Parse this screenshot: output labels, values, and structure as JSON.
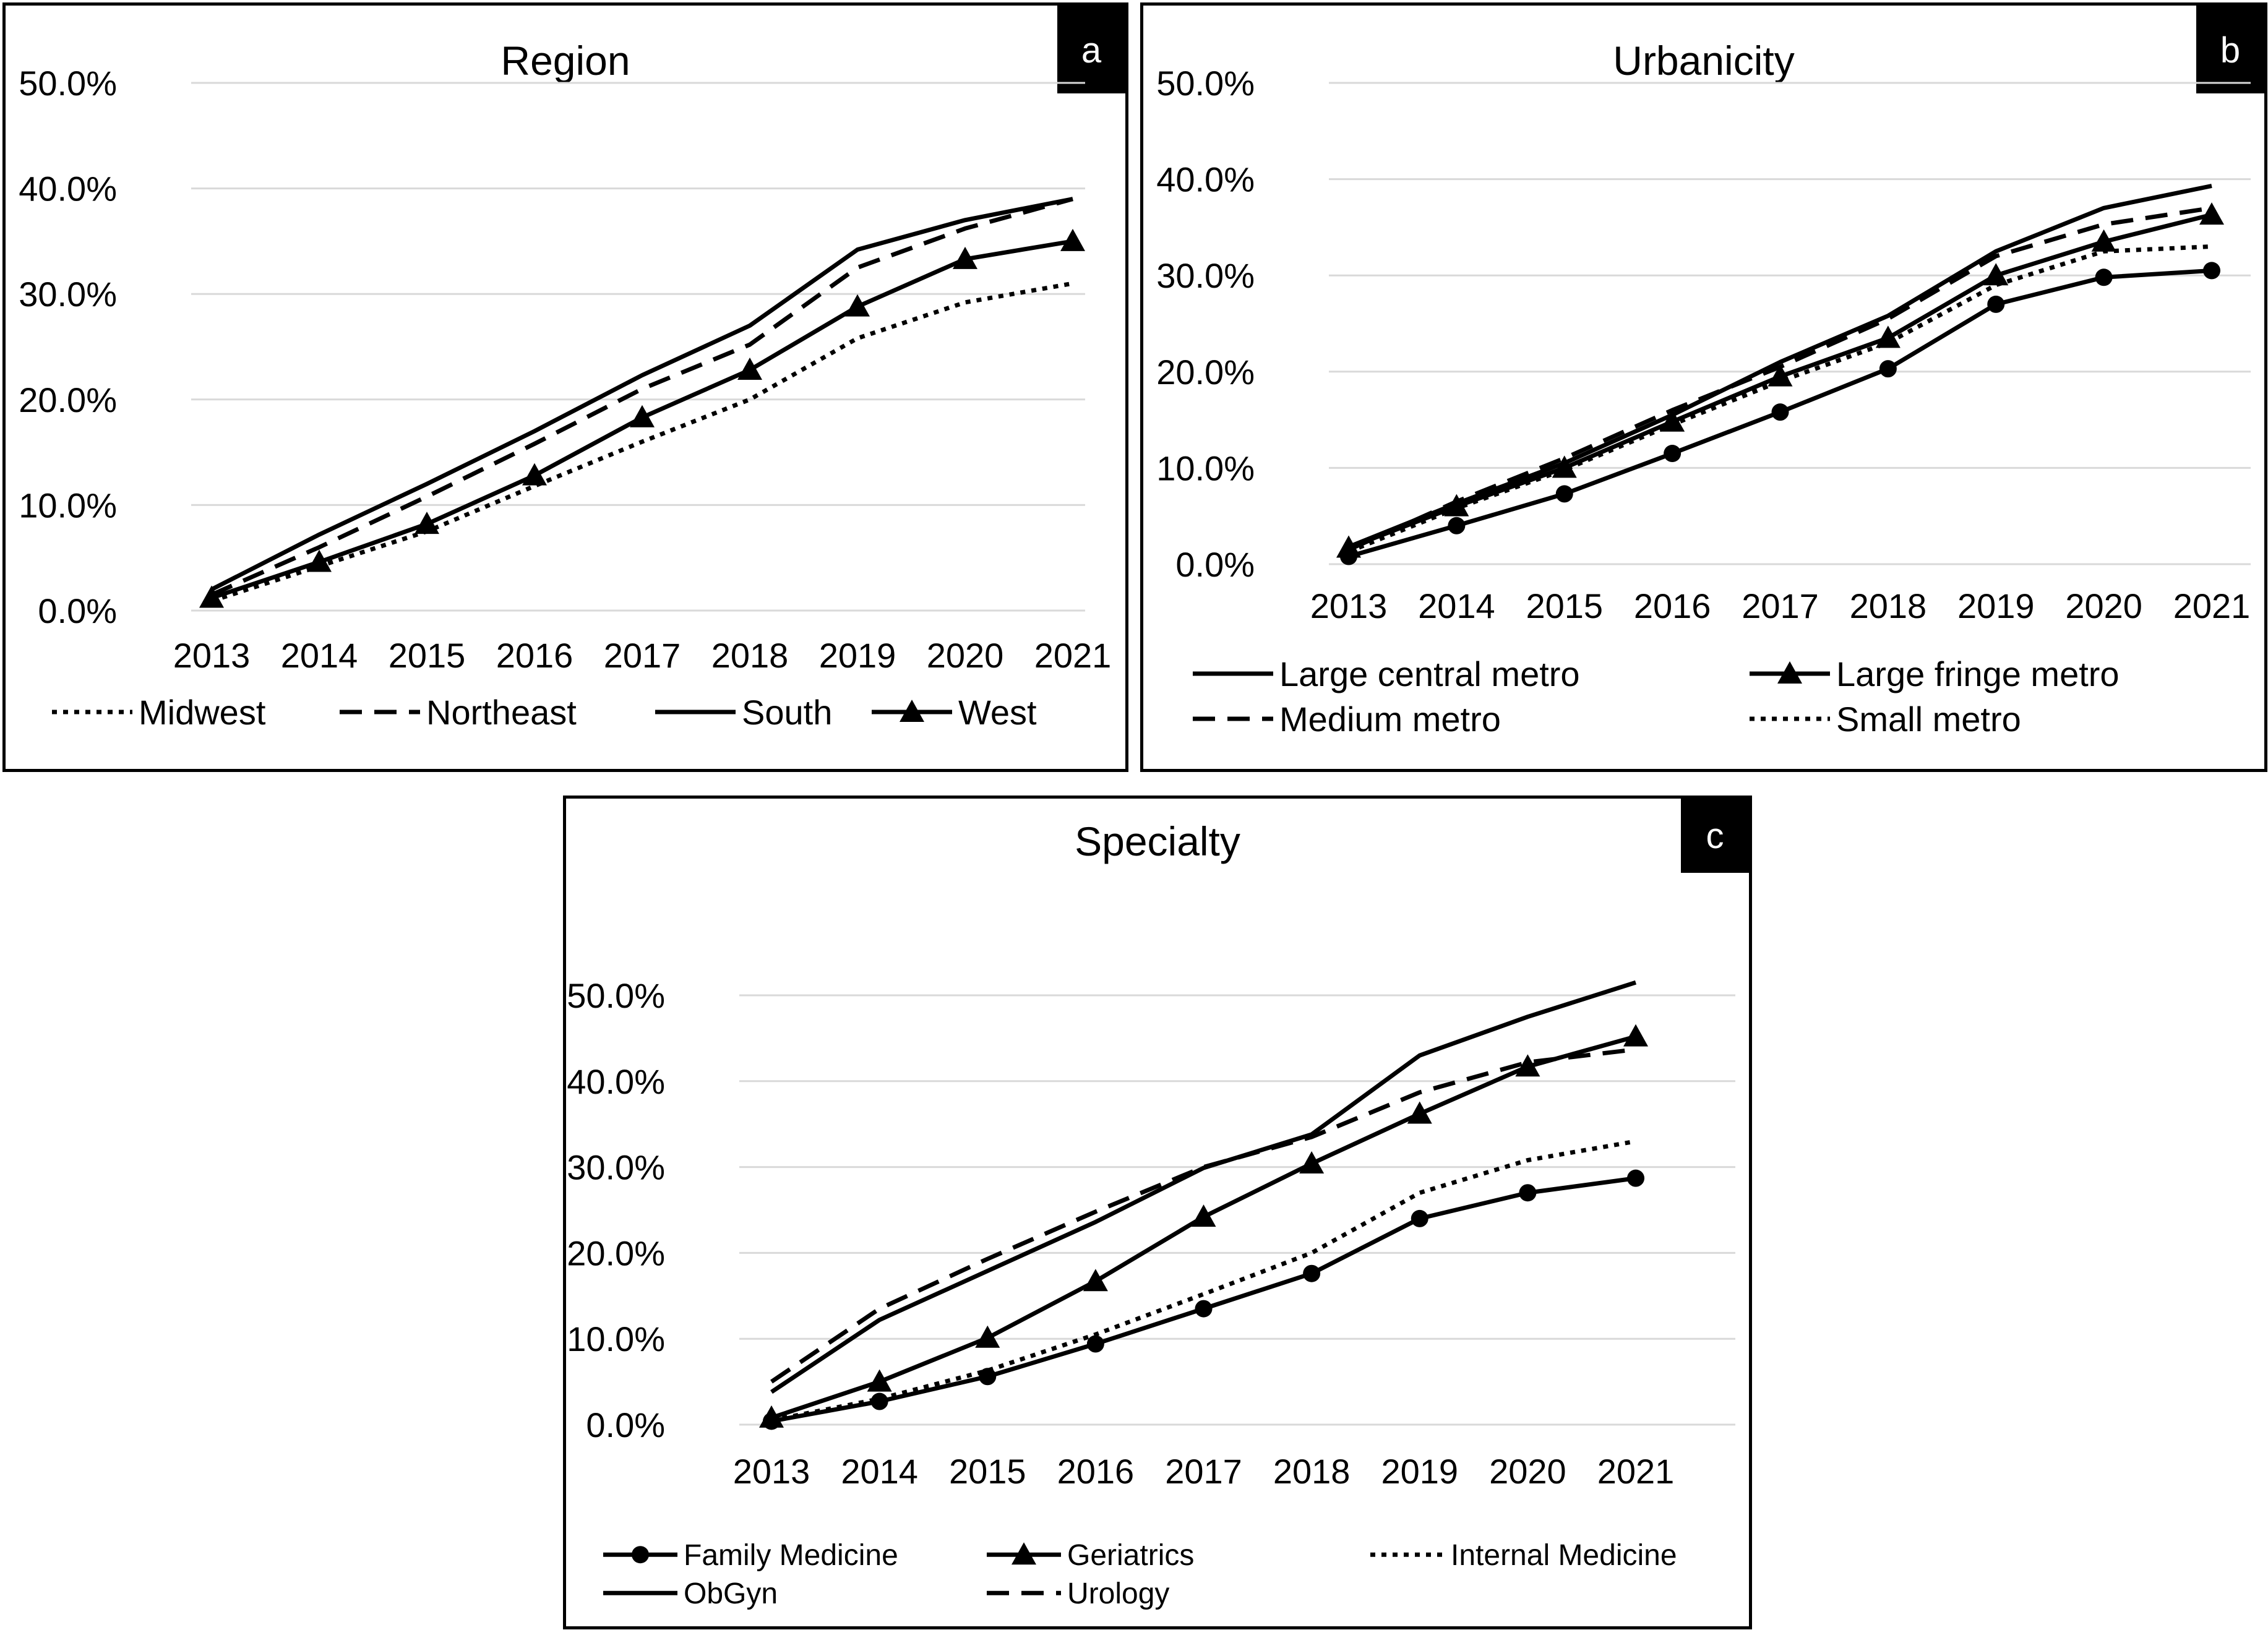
{
  "chart_data": [
    {
      "panel": "a",
      "type": "line",
      "title": "Region",
      "badge": "a",
      "x": [
        "2013",
        "2014",
        "2015",
        "2016",
        "2017",
        "2018",
        "2019",
        "2020",
        "2021"
      ],
      "ylim": [
        0,
        50
      ],
      "yticks": [
        "0.0%",
        "10.0%",
        "20.0%",
        "30.0%",
        "40.0%",
        "50.0%"
      ],
      "grid": true,
      "legend_position": "bottom",
      "series": [
        {
          "name": "Midwest",
          "style": "dotted",
          "marker": "none",
          "values": [
            0.9,
            4.2,
            7.5,
            11.8,
            16.0,
            20.0,
            25.8,
            29.2,
            31.0
          ]
        },
        {
          "name": "Northeast",
          "style": "dashed",
          "marker": "none",
          "values": [
            1.5,
            6.0,
            10.8,
            15.8,
            21.0,
            25.2,
            32.5,
            36.2,
            39.0
          ]
        },
        {
          "name": "South",
          "style": "solid",
          "marker": "none",
          "values": [
            2.0,
            7.2,
            12.0,
            17.0,
            22.3,
            27.0,
            34.2,
            37.0,
            39.0
          ]
        },
        {
          "name": "West",
          "style": "solid",
          "marker": "triangle",
          "values": [
            1.2,
            4.6,
            8.2,
            12.8,
            18.3,
            22.8,
            28.8,
            33.3,
            35.0
          ]
        }
      ]
    },
    {
      "panel": "b",
      "type": "line",
      "title": "Urbanicity",
      "badge": "b",
      "x": [
        "2013",
        "2014",
        "2015",
        "2016",
        "2017",
        "2018",
        "2019",
        "2020",
        "2021"
      ],
      "ylim": [
        0,
        50
      ],
      "yticks": [
        "0.0%",
        "10.0%",
        "20.0%",
        "30.0%",
        "40.0%",
        "50.0%"
      ],
      "grid": true,
      "legend_position": "bottom",
      "series": [
        {
          "name": "Large central metro",
          "style": "solid",
          "marker": "none",
          "values": [
            1.8,
            6.3,
            10.5,
            15.5,
            21.0,
            25.8,
            32.5,
            37.0,
            39.3
          ]
        },
        {
          "name": "Large fringe metro",
          "style": "solid",
          "marker": "triangle",
          "values": [
            1.7,
            6.0,
            10.0,
            14.8,
            19.5,
            23.5,
            30.0,
            33.5,
            36.3
          ]
        },
        {
          "name": "Medium metro",
          "style": "dashed",
          "marker": "none",
          "values": [
            1.5,
            6.5,
            11.0,
            16.0,
            20.5,
            25.5,
            32.0,
            35.3,
            37.0
          ]
        },
        {
          "name": "Small metro",
          "style": "dotted",
          "marker": "none",
          "values": [
            1.3,
            5.8,
            9.8,
            14.5,
            19.0,
            23.0,
            29.0,
            32.5,
            33.0
          ]
        },
        {
          "name": "",
          "style": "solid",
          "marker": "circle",
          "values": [
            0.8,
            4.0,
            7.3,
            11.5,
            15.8,
            20.3,
            27.0,
            29.8,
            30.5
          ]
        }
      ]
    },
    {
      "panel": "c",
      "type": "line",
      "title": "Specialty",
      "badge": "c",
      "x": [
        "2013",
        "2014",
        "2015",
        "2016",
        "2017",
        "2018",
        "2019",
        "2020",
        "2021"
      ],
      "ylim": [
        0,
        50
      ],
      "yticks": [
        "0.0%",
        "10.0%",
        "20.0%",
        "30.0%",
        "40.0%",
        "50.0%"
      ],
      "grid": true,
      "legend_position": "bottom",
      "series": [
        {
          "name": "Family Medicine",
          "style": "solid",
          "marker": "circle",
          "values": [
            0.4,
            2.7,
            5.6,
            9.4,
            13.5,
            17.6,
            24.0,
            27.0,
            28.7
          ]
        },
        {
          "name": "Geriatrics",
          "style": "solid",
          "marker": "triangle",
          "values": [
            0.8,
            5.0,
            10.1,
            16.7,
            24.2,
            30.4,
            36.2,
            41.7,
            45.2
          ]
        },
        {
          "name": "Internal Medicine",
          "style": "dotted",
          "marker": "none",
          "values": [
            0.5,
            3.0,
            6.3,
            10.5,
            15.2,
            20.0,
            27.0,
            30.8,
            33.0
          ]
        },
        {
          "name": "ObGyn",
          "style": "solid",
          "marker": "none",
          "values": [
            3.8,
            12.2,
            17.9,
            23.6,
            29.9,
            33.8,
            43.0,
            47.5,
            51.5
          ]
        },
        {
          "name": "Urology",
          "style": "dashed",
          "marker": "none",
          "values": [
            5.0,
            13.5,
            19.3,
            24.8,
            30.0,
            33.5,
            38.7,
            42.2,
            43.7
          ]
        }
      ]
    }
  ]
}
